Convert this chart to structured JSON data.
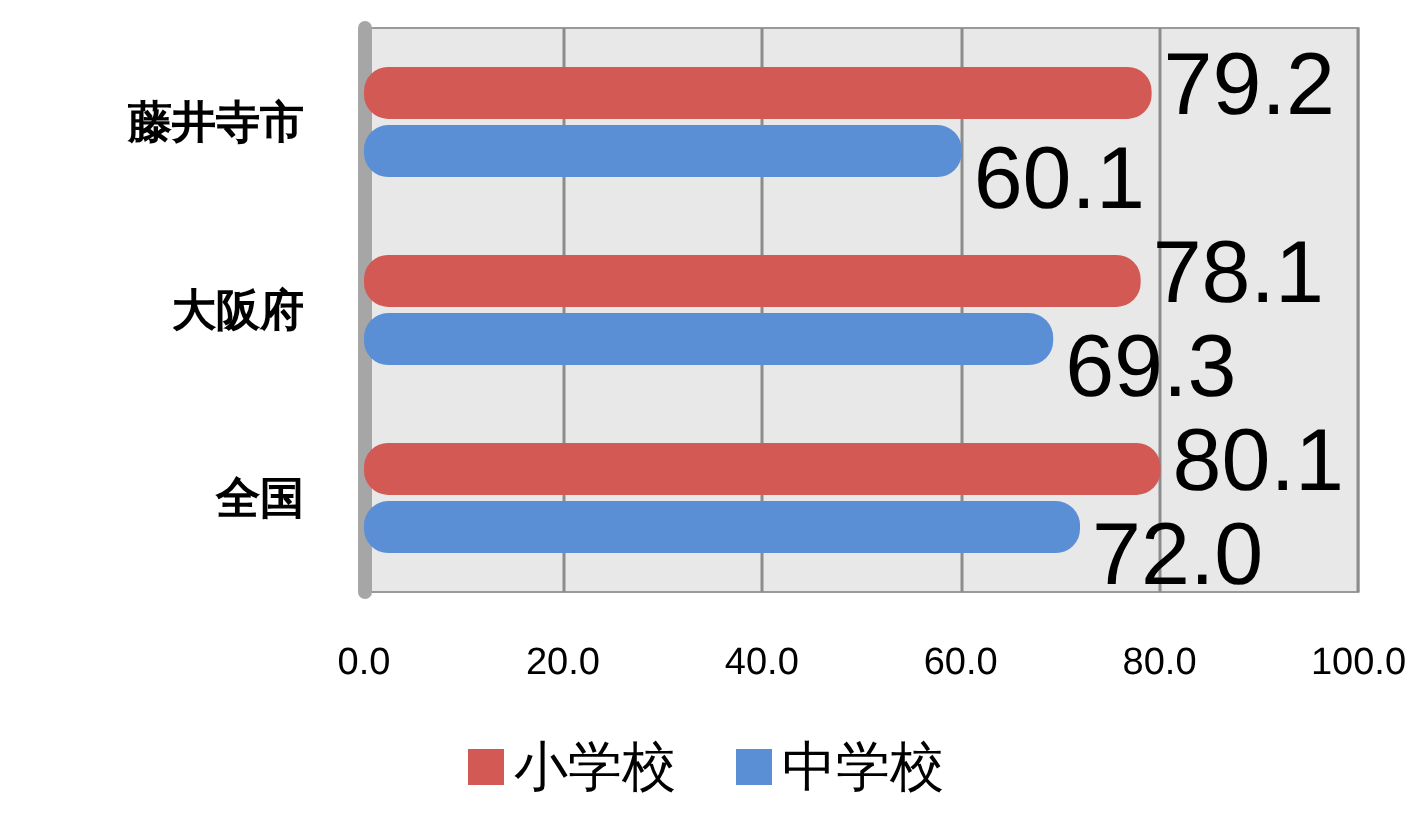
{
  "chart_data": {
    "type": "bar",
    "orientation": "horizontal",
    "categories": [
      "藤井寺市",
      "大阪府",
      "全国"
    ],
    "series": [
      {
        "name": "小学校",
        "color": "#d35955",
        "values": [
          79.2,
          78.1,
          80.1
        ],
        "value_labels": [
          "79.2",
          "78.1",
          "80.1"
        ]
      },
      {
        "name": "中学校",
        "color": "#5a8fd5",
        "values": [
          60.1,
          69.3,
          72.0
        ],
        "value_labels": [
          "60.1",
          "69.3",
          "72.0"
        ]
      }
    ],
    "xlim": [
      0,
      100
    ],
    "xticks": [
      {
        "value": 0,
        "label": "0.0"
      },
      {
        "value": 20,
        "label": "20.0"
      },
      {
        "value": 40,
        "label": "40.0"
      },
      {
        "value": 60,
        "label": "60.0"
      },
      {
        "value": 80,
        "label": "80.0"
      },
      {
        "value": 100,
        "label": "100.0"
      }
    ],
    "grid": "x",
    "legend": "bottom"
  }
}
